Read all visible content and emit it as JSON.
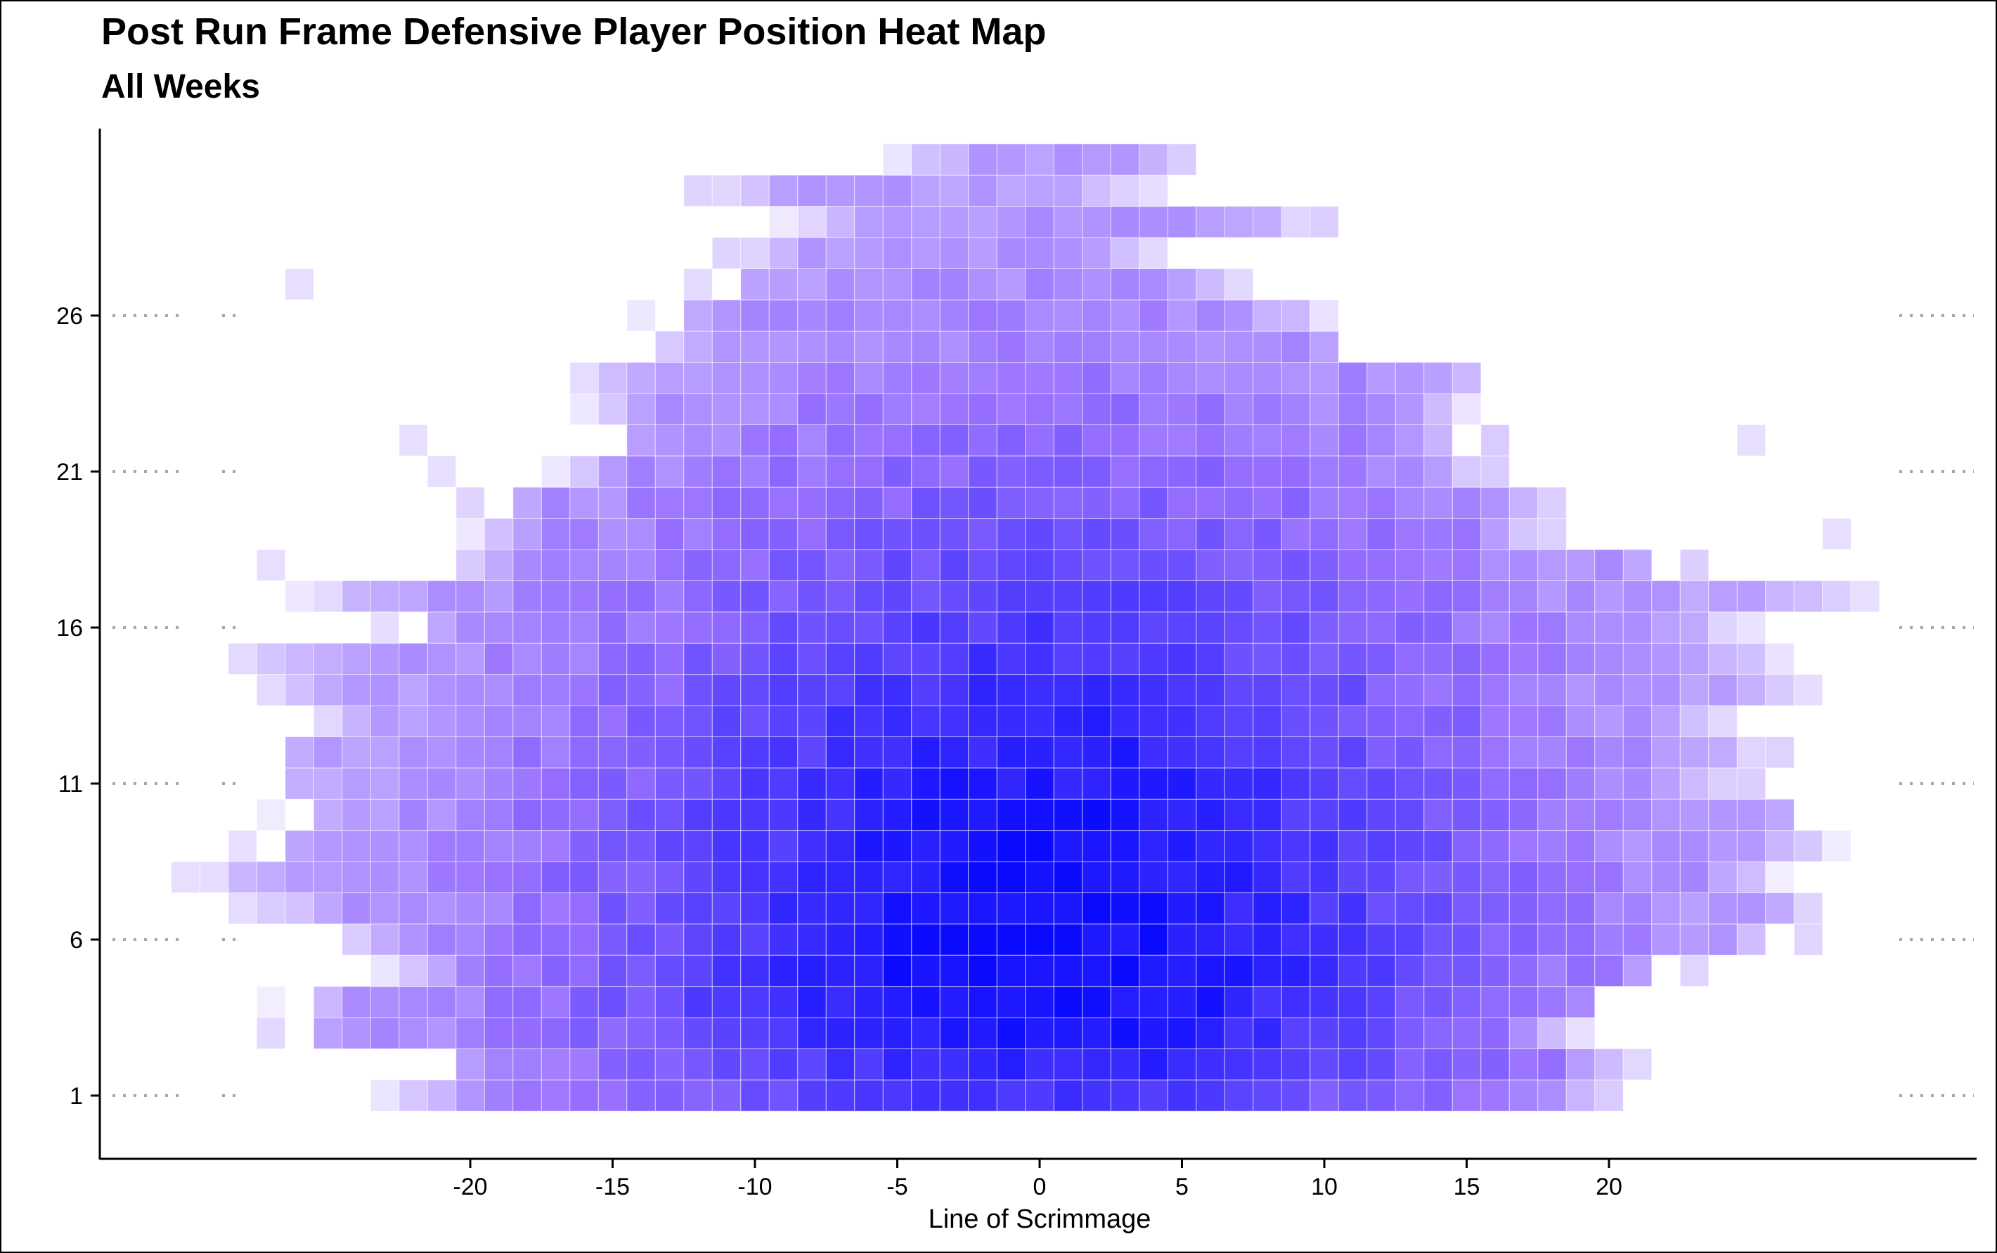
{
  "header": {
    "title": "Post Run Frame Defensive Player Position Heat Map",
    "subtitle": "All Weeks"
  },
  "chart_data": {
    "type": "heatmap",
    "title": "Post Run Frame Defensive Player Position Heat Map",
    "subtitle": "All Weeks",
    "xlabel": "Line of Scrimmage",
    "ylabel": "",
    "x_ticks": [
      -20,
      -15,
      -10,
      -5,
      0,
      5,
      10,
      15,
      20
    ],
    "y_ticks": [
      1,
      6,
      11,
      16,
      21,
      26
    ],
    "x_range": [
      -33,
      31
    ],
    "y_range": [
      0,
      31
    ],
    "bin_size": 1,
    "grid": false,
    "reference_lines": "dotted gray guides at each y tick near the left and right edges",
    "color_scale": {
      "low": "#ffffff",
      "high": "#0000ff",
      "mid_hue": "#8a5cff"
    },
    "density_description": "Players cluster around x = 0 and y = 5; density decreases outward. Peak bin at x = 0, y = 5.",
    "peak": {
      "x": 0,
      "y": 5
    },
    "rows": [
      {
        "y": 1,
        "x_min": -23,
        "x_max": 20
      },
      {
        "y": 2,
        "x_min": -22,
        "x_max": 21
      },
      {
        "y": 3,
        "x_min": -27,
        "x_max": 19
      },
      {
        "y": 4,
        "x_min": -27,
        "x_max": 21
      },
      {
        "y": 5,
        "x_min": -23,
        "x_max": 23
      },
      {
        "y": 6,
        "x_min": -25,
        "x_max": 27
      },
      {
        "y": 7,
        "x_min": -28,
        "x_max": 28
      },
      {
        "y": 8,
        "x_min": -30,
        "x_max": 26
      },
      {
        "y": 9,
        "x_min": -28,
        "x_max": 28
      },
      {
        "y": 10,
        "x_min": -27,
        "x_max": 28
      },
      {
        "y": 11,
        "x_min": -28,
        "x_max": 25
      },
      {
        "y": 12,
        "x_min": -28,
        "x_max": 26
      },
      {
        "y": 13,
        "x_min": -26,
        "x_max": 24
      },
      {
        "y": 14,
        "x_min": -27,
        "x_max": 27
      },
      {
        "y": 15,
        "x_min": -28,
        "x_max": 26
      },
      {
        "y": 16,
        "x_min": -23,
        "x_max": 25
      },
      {
        "y": 17,
        "x_min": -26,
        "x_max": 29
      },
      {
        "y": 18,
        "x_min": -21,
        "x_max": 23
      },
      {
        "y": 19,
        "x_min": -20,
        "x_max": 18
      },
      {
        "y": 20,
        "x_min": -20,
        "x_max": 19
      },
      {
        "y": 21,
        "x_min": -17,
        "x_max": 16
      },
      {
        "y": 22,
        "x_min": -16,
        "x_max": 16
      },
      {
        "y": 23,
        "x_min": -16,
        "x_max": 15
      },
      {
        "y": 24,
        "x_min": -16,
        "x_max": 16
      },
      {
        "y": 25,
        "x_min": -14,
        "x_max": 12
      },
      {
        "y": 26,
        "x_min": -14,
        "x_max": 10
      },
      {
        "y": 27,
        "x_min": -12,
        "x_max": 7
      },
      {
        "y": 28,
        "x_min": -11,
        "x_max": 4
      },
      {
        "y": 29,
        "x_min": -9,
        "x_max": 10
      },
      {
        "y": 30,
        "x_min": -12,
        "x_max": 4
      },
      {
        "y": 31,
        "x_min": -5,
        "x_max": 6
      }
    ],
    "outliers": [
      {
        "x": -30,
        "y": 8
      },
      {
        "x": -27,
        "y": 18
      },
      {
        "x": -26,
        "y": 27
      },
      {
        "x": -22,
        "y": 22
      },
      {
        "x": -21,
        "y": 21
      },
      {
        "x": 25,
        "y": 22
      },
      {
        "x": 28,
        "y": 19
      },
      {
        "x": 29,
        "y": 17
      }
    ]
  }
}
